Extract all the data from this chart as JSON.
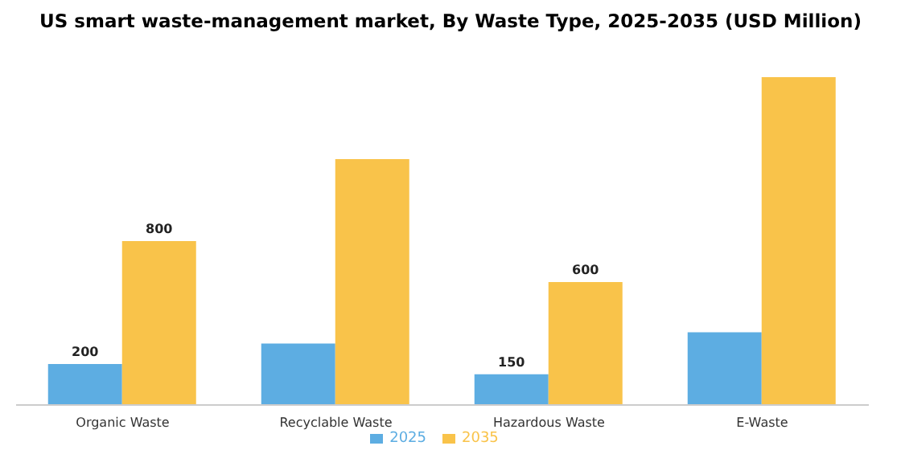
{
  "chart_data": {
    "type": "bar",
    "title": "US smart waste-management market, By Waste Type, 2025-2035 (USD Million)",
    "categories": [
      "Organic Waste",
      "Recyclable Waste",
      "Hazardous Waste",
      "E-Waste"
    ],
    "series": [
      {
        "name": "2025",
        "color": "#5dade2",
        "values": [
          200,
          300,
          150,
          355
        ],
        "value_labels": [
          "200",
          null,
          "150",
          null
        ]
      },
      {
        "name": "2035",
        "color": "#f9c34a",
        "values": [
          800,
          1200,
          600,
          1600
        ],
        "value_labels": [
          "800",
          null,
          "600",
          null
        ]
      }
    ],
    "legend": "bottom",
    "grid": false
  }
}
